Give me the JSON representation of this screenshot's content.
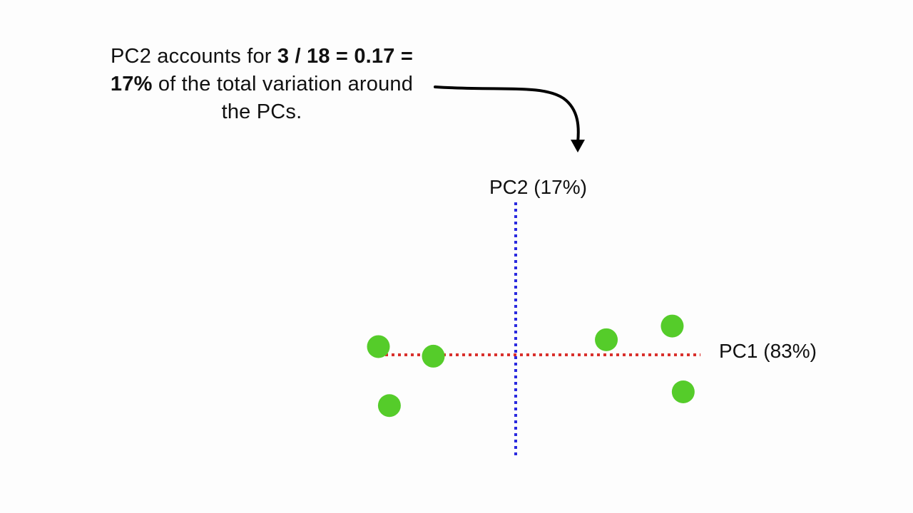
{
  "caption": {
    "line1_plain": "PC2 accounts for ",
    "line1_bold": "3 / 18 = 0.17 =",
    "line2_bold": "17%",
    "line2_plain": " of the total variation around",
    "line3_plain": "the PCs."
  },
  "axes": {
    "pc1_label": "PC1 (83%)",
    "pc2_label": "PC2 (17%)",
    "pc1_color": "#d9302c",
    "pc2_color": "#2a2adf"
  },
  "points": {
    "color": "#55cc2a",
    "values": [
      {
        "pc1": -5.0,
        "pc2": 0.3
      },
      {
        "pc1": -3.0,
        "pc2": -0.05
      },
      {
        "pc1": -4.6,
        "pc2": -1.85
      },
      {
        "pc1": 3.3,
        "pc2": 0.55
      },
      {
        "pc1": 5.7,
        "pc2": 1.05
      },
      {
        "pc1": 6.1,
        "pc2": -1.35
      }
    ]
  },
  "arrow": {
    "color": "#000000"
  }
}
